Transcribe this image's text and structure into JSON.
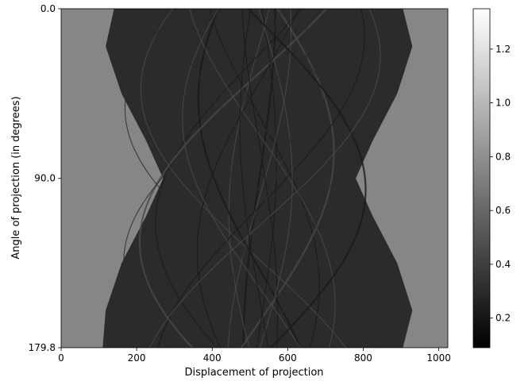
{
  "chart_data": {
    "type": "heatmap",
    "description_kind": "sinogram",
    "colormap": "gray",
    "xlabel": "Displacement of projection",
    "ylabel": "Angle of projection (in degrees)",
    "xlim": [
      0,
      1024
    ],
    "ylim": [
      179.8,
      0.0
    ],
    "x_ticks": [
      0,
      200,
      400,
      600,
      800,
      1000
    ],
    "x_tick_labels": [
      "0",
      "200",
      "400",
      "600",
      "800",
      "1000"
    ],
    "y_ticks": [
      0.0,
      90.0,
      179.8
    ],
    "y_tick_labels": [
      "0.0",
      "90.0",
      "179.8"
    ],
    "colorbar": {
      "range": [
        0.09,
        1.35
      ],
      "ticks": [
        0.2,
        0.4,
        0.6,
        0.8,
        1.0,
        1.2
      ],
      "tick_labels": [
        "0.2",
        "0.4",
        "0.6",
        "0.8",
        "1.0",
        "1.2"
      ]
    },
    "background_value": 0.75,
    "object_region": {
      "left_edge": {
        "angles": [
          0,
          20,
          45,
          70,
          90,
          110,
          135,
          160,
          179.8
        ],
        "displacement": [
          140,
          118,
          160,
          225,
          270,
          225,
          160,
          118,
          110
        ]
      },
      "right_edge": {
        "angles": [
          0,
          20,
          45,
          70,
          90,
          110,
          135,
          160,
          179.8
        ],
        "displacement": [
          905,
          930,
          890,
          825,
          780,
          825,
          890,
          930,
          905
        ]
      },
      "interior_value": 0.3
    },
    "grid": false,
    "legend": "none"
  }
}
